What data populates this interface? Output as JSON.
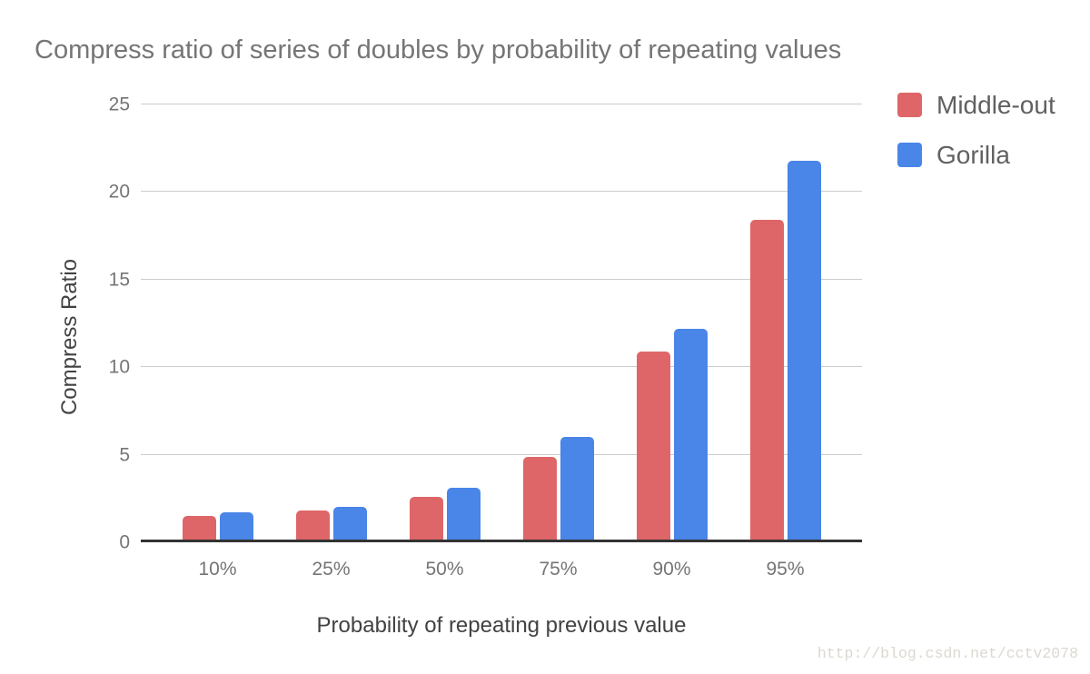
{
  "chart_data": {
    "type": "bar",
    "title": "Compress ratio of series of doubles by probability of repeating values",
    "xlabel": "Probability of repeating previous value",
    "ylabel": "Compress Ratio",
    "categories": [
      "10%",
      "25%",
      "50%",
      "75%",
      "90%",
      "95%"
    ],
    "series": [
      {
        "name": "Middle-out",
        "color": "#DE6668",
        "values": [
          1.5,
          1.8,
          2.6,
          4.9,
          10.9,
          18.4
        ]
      },
      {
        "name": "Gorilla",
        "color": "#4A85E8",
        "values": [
          1.7,
          2.0,
          3.1,
          6.0,
          12.2,
          21.8
        ]
      }
    ],
    "ylim": [
      0,
      25
    ],
    "yticks": [
      0,
      5,
      10,
      15,
      20,
      25
    ],
    "grid": true,
    "legend_position": "top-right"
  },
  "watermark": {
    "text": "http://blog.csdn.net/cctv2078",
    "color": "#DCD8D0"
  },
  "colors": {
    "background": "#FFFFFF",
    "gridline": "#CCCCCC",
    "axis_line": "#333333",
    "title_text": "#757575",
    "tick_text": "#757575",
    "axis_title_text": "#424242",
    "legend_text": "#616161"
  }
}
